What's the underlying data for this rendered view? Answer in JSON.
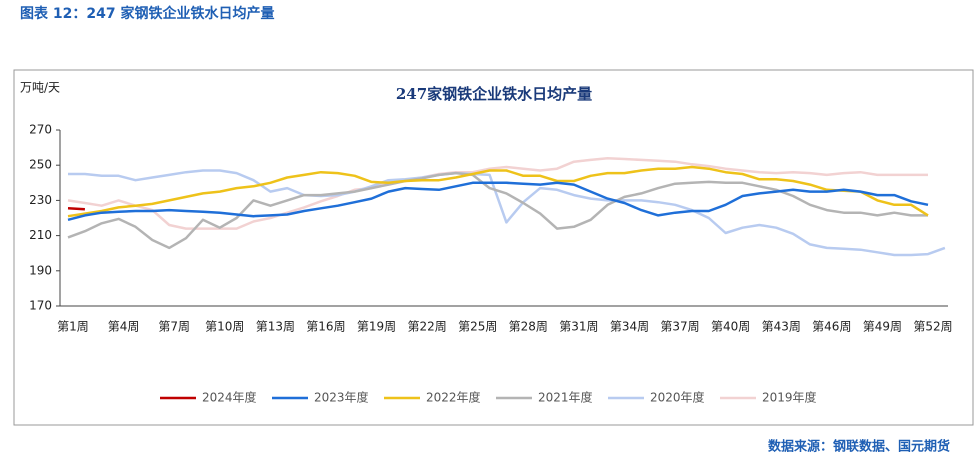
{
  "header": {
    "title": "图表 12：247 家钢铁企业铁水日均产量"
  },
  "source": "数据来源：钢联数据、国元期货",
  "chart_data": {
    "type": "line",
    "title": "247家钢铁企业铁水日均产量",
    "y_label": "万吨/天",
    "categories": [
      "第1周",
      null,
      null,
      "第4周",
      null,
      null,
      "第7周",
      null,
      null,
      "第10周",
      null,
      null,
      "第13周",
      null,
      null,
      "第16周",
      null,
      null,
      "第19周",
      null,
      null,
      "第22周",
      null,
      null,
      "第25周",
      null,
      null,
      "第28周",
      null,
      null,
      "第31周",
      null,
      null,
      "第34周",
      null,
      null,
      "第37周",
      null,
      null,
      "第40周",
      null,
      null,
      "第43周",
      null,
      null,
      "第46周",
      null,
      null,
      "第49周",
      null,
      null,
      "第52周",
      null
    ],
    "ylim": [
      170,
      270
    ],
    "yticks": [
      170,
      190,
      210,
      230,
      250,
      270
    ],
    "grid": false,
    "legend": "bottom",
    "series": [
      {
        "name": "2024年度",
        "color": "#c00000",
        "values": [
          225.5,
          225,
          null,
          null,
          null,
          null,
          null,
          null,
          null,
          null,
          null,
          null,
          null,
          null,
          null,
          null,
          null,
          null,
          null,
          null,
          null,
          null,
          null,
          null,
          null,
          null,
          null,
          null,
          null,
          null,
          null,
          null,
          null,
          null,
          null,
          null,
          null,
          null,
          null,
          null,
          null,
          null,
          null,
          null,
          null,
          null,
          null,
          null,
          null,
          null,
          null,
          null,
          null
        ]
      },
      {
        "name": "2023年度",
        "color": "#1f6fd8",
        "values": [
          219,
          221.5,
          223,
          223.5,
          224,
          224,
          224.5,
          224,
          223.5,
          223,
          222,
          221,
          221.5,
          222,
          224,
          225.5,
          227,
          229,
          231,
          235,
          237,
          236.5,
          236,
          238,
          240,
          240,
          240,
          239.5,
          239,
          240,
          239,
          235,
          231,
          228.5,
          224.5,
          221.5,
          223,
          224,
          224,
          227.5,
          232.5,
          234,
          235,
          236,
          235,
          235,
          236,
          235,
          233,
          233,
          229.5,
          227.5,
          null
        ]
      },
      {
        "name": "2022年度",
        "color": "#eec21a",
        "values": [
          221,
          222.5,
          224,
          226,
          227,
          228,
          230,
          232,
          234,
          235,
          237,
          238,
          240,
          243,
          244.5,
          246,
          245.5,
          244,
          240.5,
          240,
          241,
          241.5,
          241.5,
          243,
          245,
          247,
          247,
          244,
          244,
          241,
          241,
          244,
          245.5,
          245.5,
          247,
          248,
          248,
          249,
          248,
          246,
          245,
          242,
          242,
          241,
          239,
          236,
          235.5,
          235,
          230,
          227.5,
          227.5,
          221.5,
          null
        ]
      },
      {
        "name": "2021年度",
        "color": "#b4b4b4",
        "values": [
          209,
          212.5,
          217,
          219.5,
          215,
          207.5,
          203,
          208.5,
          219,
          214.5,
          220,
          230,
          227,
          230,
          233,
          233,
          234,
          235,
          237,
          239,
          241,
          242.5,
          244.5,
          245.5,
          244.5,
          237,
          234,
          228.5,
          222.5,
          214,
          215,
          219,
          227.5,
          232,
          234,
          237,
          239.5,
          240,
          240.5,
          240,
          240,
          238,
          236,
          232.5,
          227.5,
          224.5,
          223,
          223,
          221.5,
          223,
          221.5,
          221.5,
          null
        ]
      },
      {
        "name": "2020年度",
        "color": "#b8cbf0",
        "values": [
          245,
          245,
          244,
          244,
          241.5,
          243,
          244.5,
          246,
          247,
          247,
          245.5,
          241.5,
          235,
          237,
          233,
          232.5,
          233,
          235,
          238,
          241.5,
          242,
          243,
          244.5,
          245.5,
          245,
          244.5,
          217.5,
          229,
          237,
          236,
          233,
          231,
          230,
          230,
          230,
          229,
          227.5,
          224.5,
          220,
          211.5,
          214.5,
          216,
          214.5,
          211,
          205,
          203,
          202.5,
          202,
          200.5,
          199,
          199,
          199.5,
          203
        ]
      },
      {
        "name": "2019年度",
        "color": "#f2d2d2",
        "values": [
          230,
          228.5,
          227,
          230,
          227,
          224.5,
          216,
          214,
          214,
          214,
          214,
          218,
          220,
          223,
          226,
          229.5,
          232.5,
          236,
          237,
          240,
          241.5,
          243,
          245,
          246,
          246,
          248,
          249,
          248,
          247,
          248,
          252,
          253,
          254,
          253.5,
          253,
          252.5,
          252,
          250.5,
          249.5,
          248,
          247,
          246,
          245.5,
          246,
          245.5,
          244.5,
          245.5,
          246,
          244.5,
          244.5,
          244.5,
          244.5,
          null
        ]
      }
    ]
  }
}
